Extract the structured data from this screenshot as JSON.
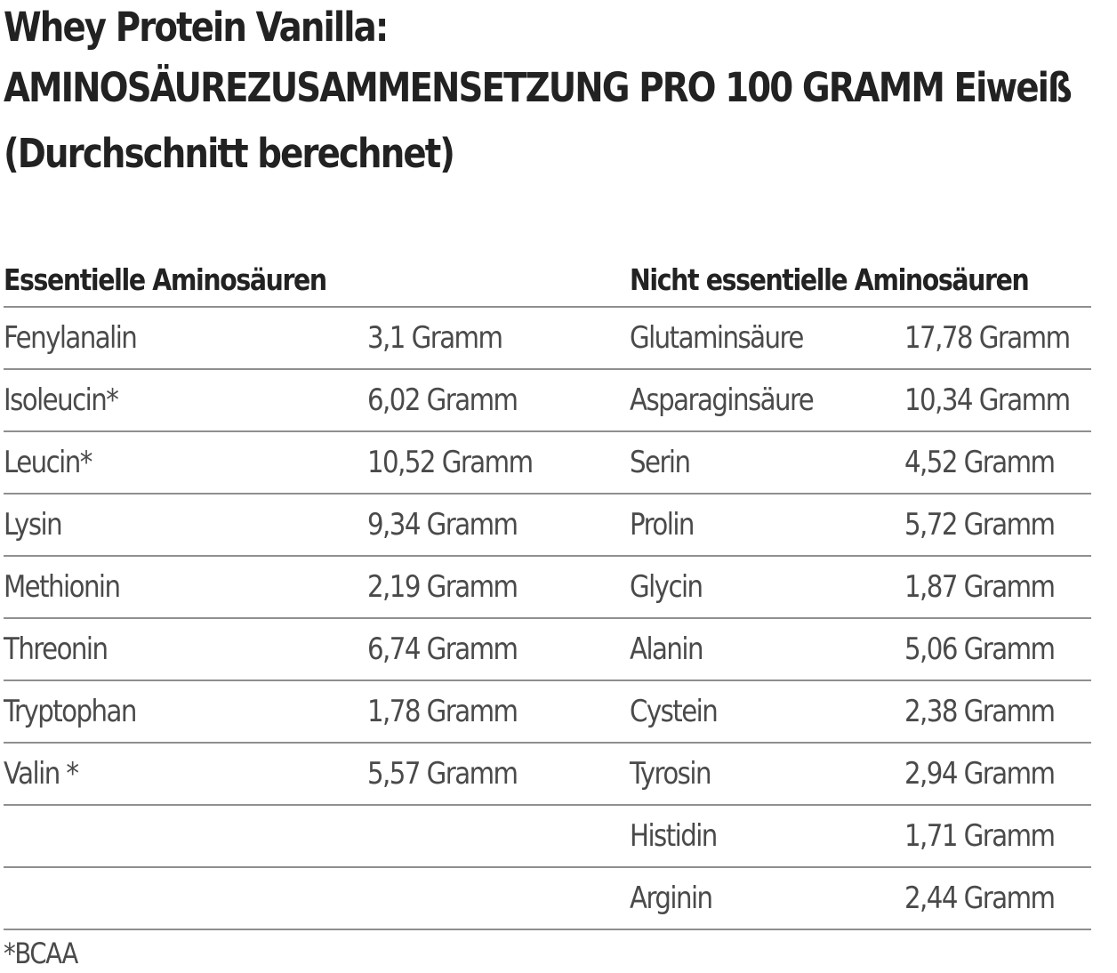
{
  "title": {
    "line1": "Whey Protein Vanilla:",
    "line2": "AMINOSÄUREZUSAMMENSETZUNG PRO 100 GRAMM Eiweiß",
    "line3": "(Durchschnitt berechnet)"
  },
  "table": {
    "headers": {
      "essential": "Essentielle Aminosäuren",
      "nonessential": "Nicht essentielle Aminosäuren"
    },
    "rows": [
      {
        "ess_name": "Fenylanalin",
        "ess_value": "3,1 Gramm",
        "non_name": "Glutaminsäure",
        "non_value": "17,78 Gramm"
      },
      {
        "ess_name": "Isoleucin*",
        "ess_value": "6,02 Gramm",
        "non_name": "Asparaginsäure",
        "non_value": "10,34 Gramm"
      },
      {
        "ess_name": "Leucin*",
        "ess_value": "10,52 Gramm",
        "non_name": "Serin",
        "non_value": "4,52 Gramm"
      },
      {
        "ess_name": "Lysin",
        "ess_value": "9,34 Gramm",
        "non_name": "Prolin",
        "non_value": "5,72 Gramm"
      },
      {
        "ess_name": "Methionin",
        "ess_value": "2,19 Gramm",
        "non_name": "Glycin",
        "non_value": "1,87 Gramm"
      },
      {
        "ess_name": "Threonin",
        "ess_value": "6,74 Gramm",
        "non_name": "Alanin",
        "non_value": "5,06 Gramm"
      },
      {
        "ess_name": "Tryptophan",
        "ess_value": "1,78 Gramm",
        "non_name": "Cystein",
        "non_value": "2,38 Gramm"
      },
      {
        "ess_name": "Valin *",
        "ess_value": "5,57 Gramm",
        "non_name": "Tyrosin",
        "non_value": "2,94 Gramm"
      },
      {
        "ess_name": "",
        "ess_value": "",
        "non_name": "Histidin",
        "non_value": "1,71 Gramm"
      },
      {
        "ess_name": "",
        "ess_value": "",
        "non_name": "Arginin",
        "non_value": "2,44 Gramm"
      }
    ]
  },
  "footnote": "*BCAA"
}
